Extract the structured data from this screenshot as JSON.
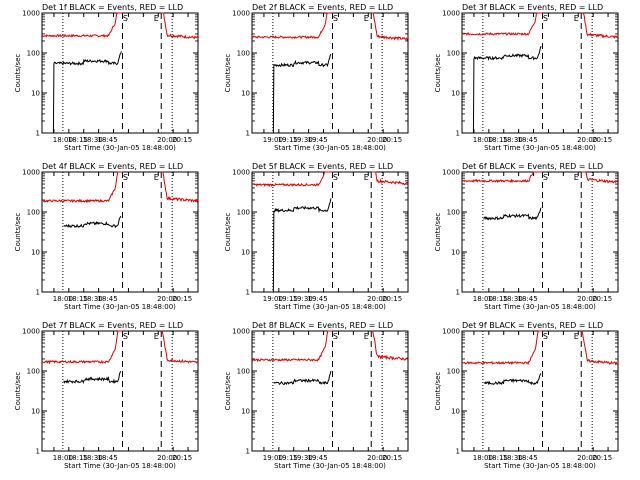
{
  "figure": {
    "xlabel": "Start Time (30-Jan-05 18:48:00)",
    "ylabel": "Counts/sec"
  },
  "common": {
    "type": "line",
    "y_scale": "log",
    "ylim": [
      1,
      1000
    ],
    "y_ticks": [
      1,
      10,
      100,
      1000
    ],
    "y_tick_labels": [
      "1",
      "10",
      "100",
      "1000"
    ],
    "x_unit": "minutes after 18:00",
    "xlim": [
      -12,
      145
    ],
    "x_tick_labels_a": [
      "18:00",
      "18:15",
      "18:30",
      "18:45",
      "20:00",
      "20:15"
    ],
    "x_tick_labels_b": [
      "19:00",
      "19:15",
      "19:30",
      "19:45",
      "20:00",
      "20:15"
    ],
    "dotted_lines_x": [
      9,
      119
    ],
    "dashed_lines_x": [
      69,
      108
    ],
    "markers": [
      {
        "label": "S",
        "x": 72
      },
      {
        "label": "E",
        "x": 103
      }
    ],
    "legend": "none",
    "grid": false,
    "colors": {
      "events": "#000000",
      "lld": "#e00000"
    }
  },
  "chart_data": [
    {
      "title": "Det 1f BLACK = Events, RED = LLD",
      "tick_set": "a",
      "lld_level": 270,
      "ev_level": 55,
      "ev_start": 0,
      "ev_drop": true,
      "lld_post": 280
    },
    {
      "title": "Det 2f BLACK = Events, RED = LLD",
      "tick_set": "b",
      "lld_level": 250,
      "ev_level": 50,
      "ev_start": 10,
      "ev_drop": true,
      "lld_post": 260
    },
    {
      "title": "Det 3f BLACK = Events, RED = LLD",
      "tick_set": "a",
      "lld_level": 300,
      "ev_level": 75,
      "ev_start": 0,
      "ev_drop": true,
      "lld_post": 290
    },
    {
      "title": "Det 4f BLACK = Events, RED = LLD",
      "tick_set": "a",
      "lld_level": 190,
      "ev_level": 45,
      "ev_start": 10,
      "ev_drop": false,
      "lld_post": 220
    },
    {
      "title": "Det 5f BLACK = Events, RED = LLD",
      "tick_set": "b",
      "lld_level": 480,
      "ev_level": 110,
      "ev_start": 10,
      "ev_drop": true,
      "lld_post": 600
    },
    {
      "title": "Det 6f BLACK = Events, RED = LLD",
      "tick_set": "a",
      "lld_level": 600,
      "ev_level": 70,
      "ev_start": 10,
      "ev_drop": false,
      "lld_post": 650
    },
    {
      "title": "Det 7f BLACK = Events, RED = LLD",
      "tick_set": "a",
      "lld_level": 170,
      "ev_level": 55,
      "ev_start": 10,
      "ev_drop": false,
      "lld_post": 190
    },
    {
      "title": "Det 8f BLACK = Events, RED = LLD",
      "tick_set": "b",
      "lld_level": 190,
      "ev_level": 50,
      "ev_start": 10,
      "ev_drop": false,
      "lld_post": 230
    },
    {
      "title": "Det 9f BLACK = Events, RED = LLD",
      "tick_set": "a",
      "lld_level": 160,
      "ev_level": 50,
      "ev_start": 10,
      "ev_drop": false,
      "lld_post": 180
    }
  ]
}
